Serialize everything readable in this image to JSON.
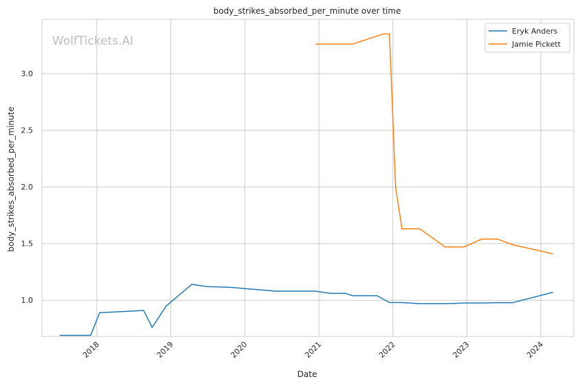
{
  "chart_data": {
    "type": "line",
    "title": "body_strikes_absorbed_per_minute over time",
    "xlabel": "Date",
    "ylabel": "body_strikes_absorbed_per_minute",
    "watermark": "WolfTickets.AI",
    "x_range": [
      "2017-04-05",
      "2024-06-12"
    ],
    "ylim": [
      0.68,
      3.48
    ],
    "x_ticks": [
      "2018",
      "2019",
      "2020",
      "2021",
      "2022",
      "2023",
      "2024"
    ],
    "y_ticks": [
      "1.0",
      "1.5",
      "2.0",
      "2.5",
      "3.0"
    ],
    "grid": true,
    "legend_position": "top-right",
    "series": [
      {
        "name": "Eryk Anders",
        "color": "#1f77b4",
        "points": [
          [
            "2017-07-01",
            0.69
          ],
          [
            "2017-12-01",
            0.69
          ],
          [
            "2018-01-15",
            0.89
          ],
          [
            "2018-08-20",
            0.91
          ],
          [
            "2018-10-01",
            0.76
          ],
          [
            "2018-12-10",
            0.95
          ],
          [
            "2019-04-15",
            1.14
          ],
          [
            "2019-07-01",
            1.12
          ],
          [
            "2019-10-15",
            1.115
          ],
          [
            "2020-04-01",
            1.09
          ],
          [
            "2020-06-01",
            1.08
          ],
          [
            "2020-12-15",
            1.08
          ],
          [
            "2021-03-01",
            1.06
          ],
          [
            "2021-05-15",
            1.06
          ],
          [
            "2021-06-15",
            1.04
          ],
          [
            "2021-10-15",
            1.04
          ],
          [
            "2021-12-15",
            0.98
          ],
          [
            "2022-02-15",
            0.98
          ],
          [
            "2022-05-15",
            0.97
          ],
          [
            "2022-09-15",
            0.97
          ],
          [
            "2022-12-20",
            0.975
          ],
          [
            "2023-03-15",
            0.975
          ],
          [
            "2023-06-01",
            0.978
          ],
          [
            "2023-08-15",
            0.978
          ],
          [
            "2024-03-01",
            1.07
          ]
        ]
      },
      {
        "name": "Jamie Pickett",
        "color": "#ff7f0e",
        "points": [
          [
            "2020-12-15",
            3.26
          ],
          [
            "2021-06-15",
            3.26
          ],
          [
            "2021-11-15",
            3.35
          ],
          [
            "2021-12-15",
            3.35
          ],
          [
            "2022-01-15",
            1.99
          ],
          [
            "2022-02-15",
            1.63
          ],
          [
            "2022-05-15",
            1.63
          ],
          [
            "2022-09-15",
            1.47
          ],
          [
            "2022-12-20",
            1.47
          ],
          [
            "2023-03-15",
            1.54
          ],
          [
            "2023-06-01",
            1.54
          ],
          [
            "2023-08-15",
            1.49
          ],
          [
            "2024-03-01",
            1.41
          ]
        ]
      }
    ]
  }
}
